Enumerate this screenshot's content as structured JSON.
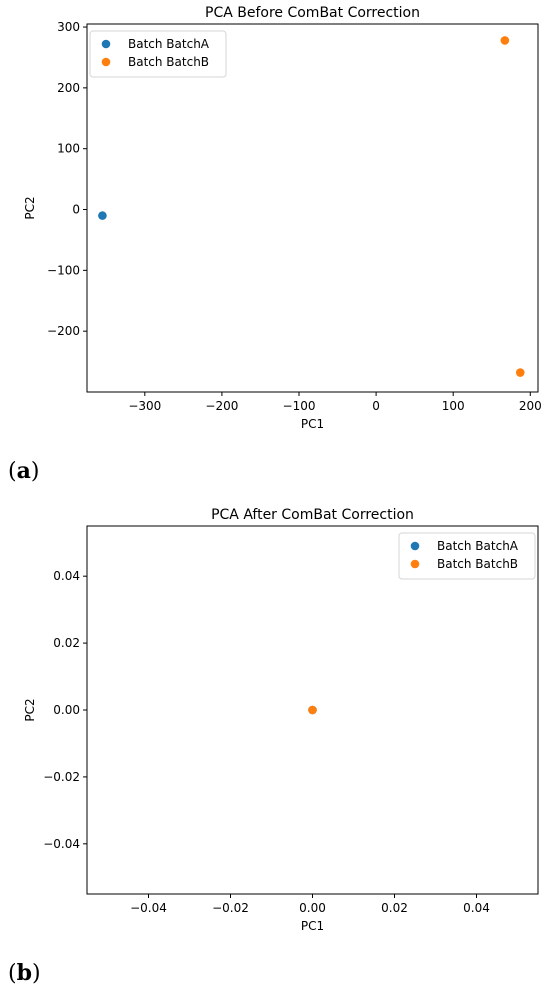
{
  "panels": [
    {
      "label_open": "(",
      "label_letter": "a",
      "label_close": ")"
    },
    {
      "label_open": "(",
      "label_letter": "b",
      "label_close": ")"
    }
  ],
  "colors": {
    "BatchA": "#1f77b4",
    "BatchB": "#ff7f0e"
  },
  "chart_data": [
    {
      "type": "scatter",
      "title": "PCA Before ComBat Correction",
      "xlabel": "PC1",
      "ylabel": "PC2",
      "xlim": [
        -375,
        210
      ],
      "ylim": [
        -300,
        305
      ],
      "xticks": [
        -300,
        -200,
        -100,
        0,
        100,
        200
      ],
      "yticks": [
        -200,
        -100,
        0,
        100,
        200,
        300
      ],
      "grid": false,
      "legend": "top-left",
      "series": [
        {
          "name": "Batch BatchA",
          "color": "#1f77b4",
          "points": [
            {
              "x": -355,
              "y": -10
            }
          ]
        },
        {
          "name": "Batch BatchB",
          "color": "#ff7f0e",
          "points": [
            {
              "x": 167,
              "y": 278
            },
            {
              "x": 187,
              "y": -268
            }
          ]
        }
      ]
    },
    {
      "type": "scatter",
      "title": "PCA After ComBat Correction",
      "xlabel": "PC1",
      "ylabel": "PC2",
      "xlim": [
        -0.055,
        0.055
      ],
      "ylim": [
        -0.055,
        0.055
      ],
      "xticks": [
        -0.04,
        -0.02,
        0.0,
        0.02,
        0.04
      ],
      "yticks": [
        -0.04,
        -0.02,
        0.0,
        0.02,
        0.04
      ],
      "tick_decimals": 2,
      "grid": false,
      "legend": "top-right",
      "series": [
        {
          "name": "Batch BatchA",
          "color": "#1f77b4",
          "points": [
            {
              "x": 0,
              "y": 0
            }
          ]
        },
        {
          "name": "Batch BatchB",
          "color": "#ff7f0e",
          "points": [
            {
              "x": 0,
              "y": 0
            }
          ]
        }
      ]
    }
  ]
}
